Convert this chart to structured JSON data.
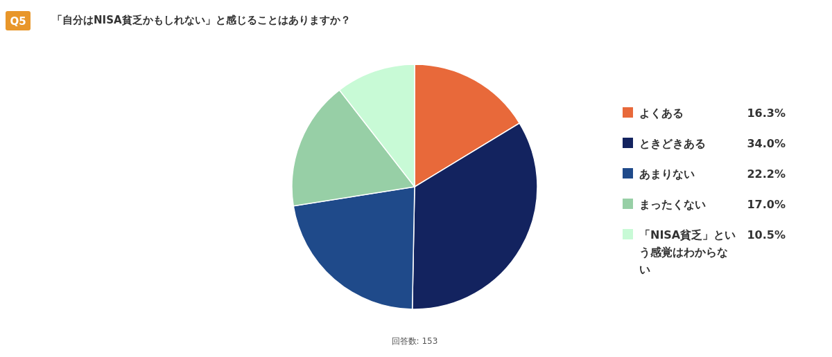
{
  "chart_data": {
    "type": "pie",
    "title": "「自分はNISA貧乏かもしれない」と感じることはありますか？",
    "categories": [
      "よくある",
      "ときどきある",
      "あまりない",
      "まったくない",
      "「NISA貧乏」という感覚はわからない"
    ],
    "values": [
      16.3,
      34.0,
      22.2,
      17.0,
      10.5
    ],
    "colors": [
      "#e8693a",
      "#13235f",
      "#1f4a8a",
      "#97cfa6",
      "#c8fad6"
    ],
    "value_labels": [
      "16.3%",
      "34.0%",
      "22.2%",
      "17.0%",
      "10.5%"
    ],
    "legend": "right",
    "annotations": [
      "Q5",
      "回答数: 153"
    ]
  }
}
